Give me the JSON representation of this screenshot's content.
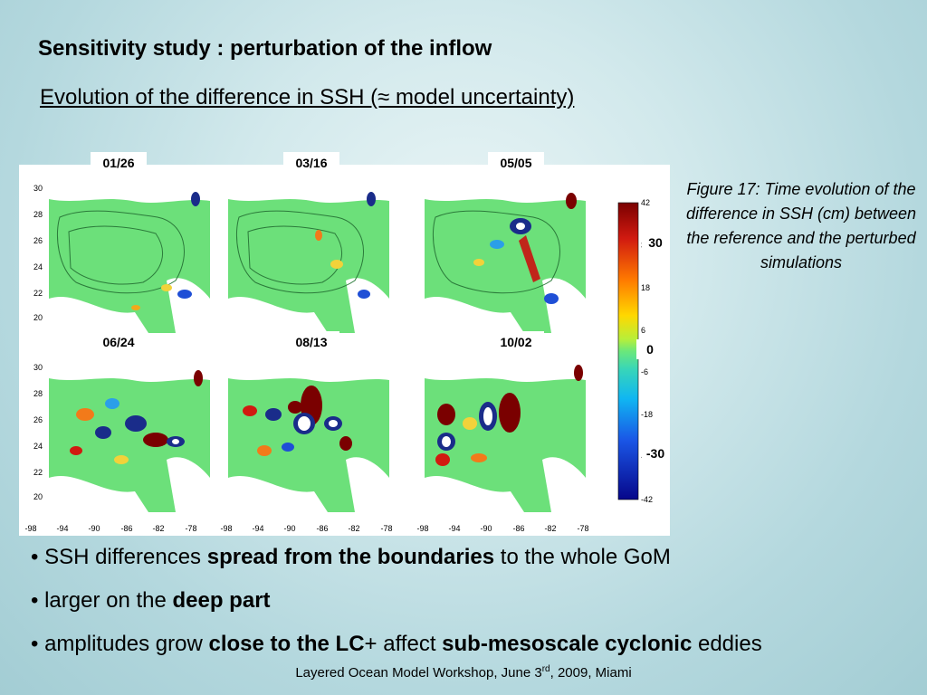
{
  "slide": {
    "title": "Sensitivity study : perturbation of the inflow",
    "subtitle": "Evolution of the difference in SSH (≈ model uncertainty)"
  },
  "figure": {
    "date_labels": [
      "01/26",
      "03/16",
      "05/05",
      "06/24",
      "08/13",
      "10/02"
    ],
    "y_ticks": [
      "30",
      "28",
      "26",
      "24",
      "22",
      "20"
    ],
    "x_ticks": [
      "-98",
      "-94",
      "-90",
      "-86",
      "-82",
      "-78"
    ],
    "colorbar_ticks": [
      "42",
      "30",
      "18",
      "6",
      "-6",
      "-18",
      "-30",
      "-42"
    ],
    "colorbar_labels": [
      "30",
      "0",
      "-30"
    ]
  },
  "caption": "Figure 17: Time evolution of the difference in SSH (cm) between the reference and the perturbed simulations",
  "bullets": [
    {
      "prefix": "• SSH differences ",
      "bold": "spread from the boundaries",
      "suffix": " to the whole GoM"
    },
    {
      "prefix": "• larger on the ",
      "bold": "deep part",
      "suffix": ""
    },
    {
      "prefix": "• amplitudes grow ",
      "bold": "close to the LC",
      "mid": "+ affect ",
      "bold2": "sub-mesoscale cyclonic",
      "suffix": " eddies"
    }
  ],
  "footer": {
    "text_before": "Layered Ocean Model Workshop, June 3",
    "sup": "rd",
    "text_after": ", 2009, Miami"
  }
}
